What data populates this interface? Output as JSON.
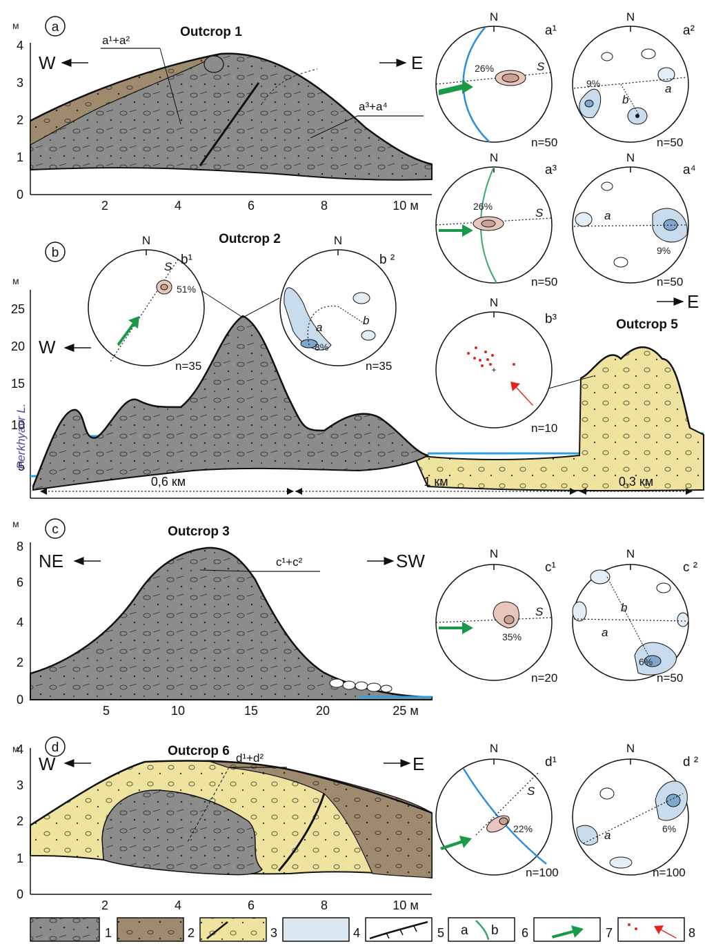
{
  "panels": {
    "a": {
      "letter": "a",
      "title": "Outcrop 1",
      "unit": "м",
      "y_ticks": [
        "0",
        "1",
        "2",
        "3",
        "4"
      ],
      "x_ticks": [
        "2",
        "4",
        "6",
        "8"
      ],
      "x_last": "10 м",
      "dir_left": "W",
      "dir_right": "E",
      "callout_1": "a¹+a²",
      "callout_2": "a³+a⁴"
    },
    "b": {
      "letter": "b",
      "title": "Outcrop 2",
      "unit": "м",
      "y_ticks": [
        "5",
        "10",
        "15",
        "20",
        "25"
      ],
      "dir_left": "W",
      "dir_right": "E",
      "lake": "Perkhyavr L.",
      "outcrop5": "Outcrop 5",
      "dist_1": "0,6 км",
      "dist_2": "1 км",
      "dist_3": "0,3 км"
    },
    "c": {
      "letter": "c",
      "title": "Outcrop 3",
      "unit": "м",
      "y_ticks": [
        "0",
        "2",
        "4",
        "6",
        "8"
      ],
      "x_ticks": [
        "5",
        "10",
        "15",
        "20"
      ],
      "x_last": "25 м",
      "dir_left": "NE",
      "dir_right": "SW",
      "callout_1": "c¹+c²"
    },
    "d": {
      "letter": "d",
      "title": "Outcrop 6",
      "unit": "м",
      "y_ticks": [
        "0",
        "1",
        "2",
        "3",
        "4"
      ],
      "x_ticks": [
        "2",
        "4",
        "6",
        "8"
      ],
      "x_last": "10 м",
      "dir_left": "W",
      "dir_right": "E",
      "callout_1": "d¹+d²"
    }
  },
  "stereonets": {
    "a1": {
      "label": "a¹",
      "north": "N",
      "n": "n=50",
      "pct": "26%",
      "s": "S"
    },
    "a2": {
      "label": "a²",
      "north": "N",
      "n": "n=50",
      "pct": "9%",
      "a": "a",
      "b": "b"
    },
    "a3": {
      "label": "a³",
      "north": "N",
      "n": "n=50",
      "pct": "26%",
      "s": "S"
    },
    "a4": {
      "label": "a⁴",
      "north": "N",
      "n": "n=50",
      "pct": "9%",
      "a": "a"
    },
    "b1": {
      "label": "b¹",
      "north": "N",
      "n": "n=35",
      "pct": "51%",
      "s": "S"
    },
    "b2": {
      "label": "b ²",
      "north": "N",
      "n": "n=35",
      "pct": "8%",
      "a": "a",
      "b": "b"
    },
    "b3": {
      "label": "b³",
      "north": "N",
      "n": "n=10"
    },
    "c1": {
      "label": "c¹",
      "north": "N",
      "n": "n=20",
      "pct": "35%",
      "s": "S"
    },
    "c2": {
      "label": "c ²",
      "north": "N",
      "n": "n=50",
      "pct": "6%",
      "a": "a",
      "b": "b"
    },
    "d1": {
      "label": "d¹",
      "north": "N",
      "n": "n=100",
      "pct": "22%",
      "s": "S"
    },
    "d2": {
      "label": "d ²",
      "north": "N",
      "n": "n=100",
      "pct": "6%",
      "a": "a"
    }
  },
  "legend": {
    "items": [
      "1",
      "2",
      "3",
      "4",
      "5",
      "6",
      "7",
      "8"
    ],
    "box6_a": "a",
    "box6_b": "b"
  },
  "colors": {
    "till_gray": "#8c8c8a",
    "till_brown": "#9e8a6e",
    "sand_yellow": "#efe3a0",
    "ice_blue": "#dce8f2",
    "water": "#2aa3dd",
    "green_arrow": "#1a9a48",
    "red_point": "#e0241c",
    "contour_pink": "#c9a293",
    "contour_blue": "#7fa6cc",
    "plane_blue": "#2d8ee0",
    "plane_green": "#3aa66b"
  }
}
